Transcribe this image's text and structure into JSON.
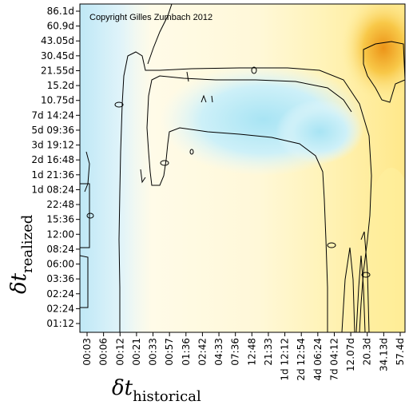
{
  "chart_data": {
    "type": "heatmap",
    "title": "",
    "copyright": "Copyright Gilles Zumbach 2012",
    "xlabel": {
      "main": "δt",
      "sub": "historical"
    },
    "ylabel": {
      "main": "δt",
      "sub": "realized"
    },
    "x_ticks": [
      "00:03",
      "00:06",
      "00:12",
      "00:21",
      "00:33",
      "00:57",
      "01:36",
      "02:42",
      "04:33",
      "07:36",
      "12:48",
      "21:33",
      "1d 12:12",
      "2d 12:54",
      "4d 06:24",
      "7d 04:12",
      "12.07d",
      "20.3d",
      "34.13d",
      "57.4d"
    ],
    "y_ticks": [
      "86.1d",
      "60.9d",
      "43.05d",
      "30.45d",
      "21.55d",
      "15.2d",
      "10.75d",
      "7d 14:24",
      "5d 09:36",
      "3d 19:12",
      "2d 16:48",
      "1d 21:36",
      "1d 08:24",
      "22:48",
      "15:36",
      "12:00",
      "08:24",
      "06:00",
      "03:36",
      "02:24",
      "02:24",
      "01:12"
    ],
    "color_scale": {
      "low": "#c8ecf8",
      "mid": "#ffffff",
      "high": "#f0a020",
      "peak": "#e89010"
    },
    "grid": false,
    "legend": "none"
  }
}
